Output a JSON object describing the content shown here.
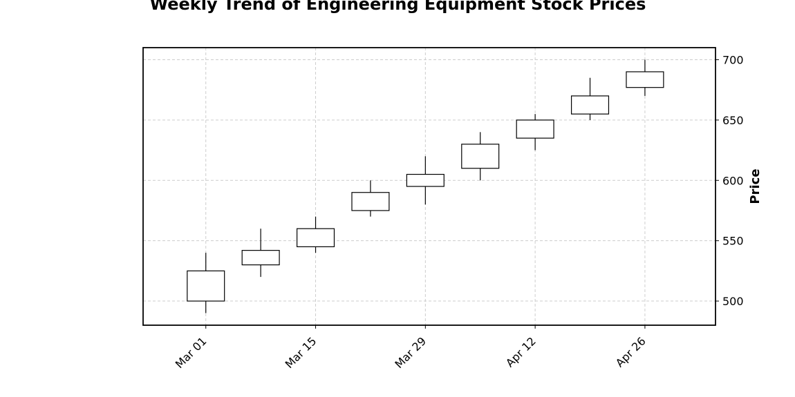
{
  "chart_data": {
    "type": "candlestick",
    "title": "Weekly Trend of Engineering Equipment Stock Prices",
    "xlabel": "",
    "ylabel": "Price",
    "ylim": [
      480,
      710
    ],
    "y_ticks": [
      500,
      550,
      600,
      650,
      700
    ],
    "x_tick_labels": [
      {
        "date": "2024-03-01",
        "label": "Mar 01"
      },
      {
        "date": "2024-03-15",
        "label": "Mar 15"
      },
      {
        "date": "2024-03-29",
        "label": "Mar 29"
      },
      {
        "date": "2024-04-12",
        "label": "Apr 12"
      },
      {
        "date": "2024-04-26",
        "label": "Apr 26"
      }
    ],
    "xlim": [
      "2024-02-22",
      "2024-05-05"
    ],
    "grid": true,
    "y_axis_side": "right",
    "candles": [
      {
        "date": "2024-03-01",
        "open": 500,
        "high": 540,
        "low": 490,
        "close": 525
      },
      {
        "date": "2024-03-08",
        "open": 530,
        "high": 560,
        "low": 520,
        "close": 542
      },
      {
        "date": "2024-03-15",
        "open": 545,
        "high": 570,
        "low": 540,
        "close": 560
      },
      {
        "date": "2024-03-22",
        "open": 575,
        "high": 600,
        "low": 570,
        "close": 590
      },
      {
        "date": "2024-03-29",
        "open": 595,
        "high": 620,
        "low": 580,
        "close": 605
      },
      {
        "date": "2024-04-05",
        "open": 610,
        "high": 640,
        "low": 600,
        "close": 630
      },
      {
        "date": "2024-04-12",
        "open": 635,
        "high": 655,
        "low": 625,
        "close": 650
      },
      {
        "date": "2024-04-19",
        "open": 655,
        "high": 685,
        "low": 650,
        "close": 670
      },
      {
        "date": "2024-04-26",
        "open": 677,
        "high": 700,
        "low": 670,
        "close": 690
      }
    ],
    "colors": {
      "up": "#ffffff",
      "edge": "#000000",
      "grid": "#cccccc"
    }
  }
}
